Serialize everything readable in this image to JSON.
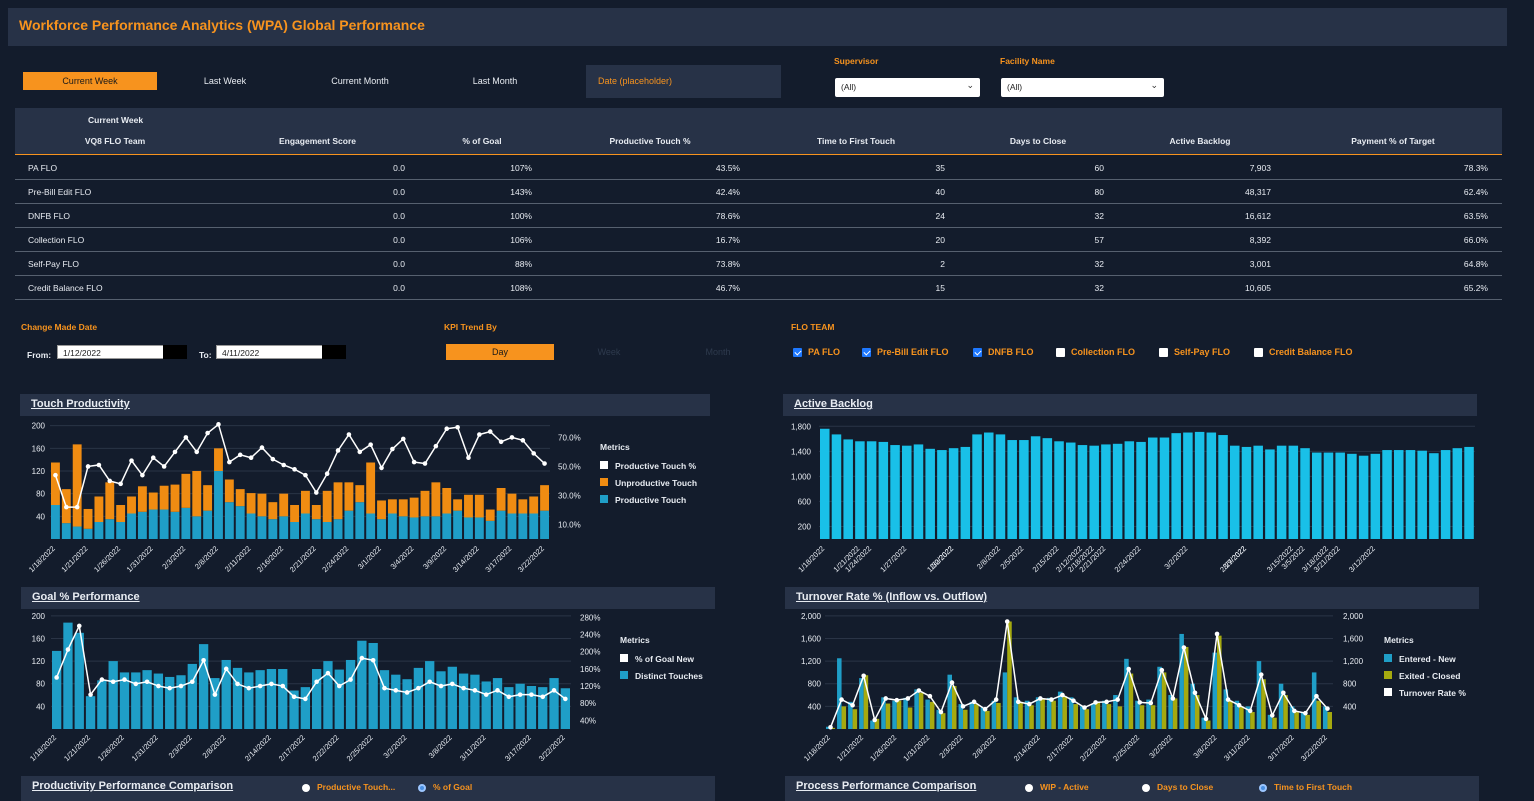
{
  "title": "Workforce Performance Analytics (WPA) Global Performance",
  "date_tabs": [
    "Current Week",
    "Last Week",
    "Current Month",
    "Last Month"
  ],
  "date_placeholder": "Date (placeholder)",
  "filters": {
    "supervisor_label": "Supervisor",
    "supervisor_value": "(All)",
    "facility_label": "Facility Name",
    "facility_value": "(All)"
  },
  "table": {
    "caption": "Current Week",
    "columns": [
      "VQ8 FLO Team",
      "Engagement Score",
      "% of Goal",
      "Productive Touch %",
      "Time to First Touch",
      "Days to Close",
      "Active Backlog",
      "Payment % of Target"
    ],
    "rows": [
      [
        "PA FLO",
        "0.0",
        "107%",
        "43.5%",
        "35",
        "60",
        "7,903",
        "78.3%"
      ],
      [
        "Pre-Bill Edit FLO",
        "0.0",
        "143%",
        "42.4%",
        "40",
        "80",
        "48,317",
        "62.4%"
      ],
      [
        "DNFB FLO",
        "0.0",
        "100%",
        "78.6%",
        "24",
        "32",
        "16,612",
        "63.5%"
      ],
      [
        "Collection FLO",
        "0.0",
        "106%",
        "16.7%",
        "20",
        "57",
        "8,392",
        "66.0%"
      ],
      [
        "Self-Pay FLO",
        "0.0",
        "88%",
        "73.8%",
        "2",
        "32",
        "3,001",
        "64.8%"
      ],
      [
        "Credit Balance FLO",
        "0.0",
        "108%",
        "46.7%",
        "15",
        "32",
        "10,605",
        "65.2%"
      ]
    ]
  },
  "change_date": {
    "label": "Change Made Date",
    "from_label": "From:",
    "from_value": "1/12/2022",
    "to_label": "To:",
    "to_value": "4/11/2022"
  },
  "kpi_trend": {
    "label": "KPI Trend By",
    "options": [
      "Day",
      "Week",
      "Month"
    ],
    "selected": "Day"
  },
  "flo_team": {
    "label": "FLO TEAM",
    "items": [
      {
        "label": "PA FLO",
        "checked": true
      },
      {
        "label": "Pre-Bill Edit FLO",
        "checked": true
      },
      {
        "label": "DNFB FLO",
        "checked": true
      },
      {
        "label": "Collection FLO",
        "checked": false
      },
      {
        "label": "Self-Pay FLO",
        "checked": false
      },
      {
        "label": "Credit Balance FLO",
        "checked": false
      }
    ]
  },
  "panels": {
    "touch": "Touch Productivity",
    "backlog": "Active Backlog",
    "goal": "Goal % Performance",
    "turnover": "Turnover Rate % (Inflow vs. Outflow)",
    "productivity_comparison": "Productivity Performance Comparison",
    "process_comparison": "Process Performance Comparison"
  },
  "productivity_radios": [
    {
      "label": "Productive Touch...",
      "selected": false
    },
    {
      "label": "% of Goal",
      "selected": true
    }
  ],
  "process_radios": [
    {
      "label": "WIP - Active",
      "selected": false
    },
    {
      "label": "Days to Close",
      "selected": false
    },
    {
      "label": "Time to First Touch",
      "selected": true
    }
  ],
  "colors": {
    "accent": "#f7931e",
    "bar_blue": "#1f9ec7",
    "backlog_blue": "#19c0e8",
    "olive": "#a5a90f",
    "panel": "#273247",
    "background": "#131c2c"
  },
  "chart_data": [
    {
      "type": "bar",
      "name": "touch",
      "stacked": true,
      "categories": [
        "1/18/2022",
        "1/19/2022",
        "1/20/2022",
        "1/21/2022",
        "1/24/2022",
        "1/25/2022",
        "1/26/2022",
        "1/27/2022",
        "1/28/2022",
        "1/31/2022",
        "2/1/2022",
        "2/2/2022",
        "2/3/2022",
        "2/4/2022",
        "2/7/2022",
        "2/8/2022",
        "2/9/2022",
        "2/10/2022",
        "2/11/2022",
        "2/14/2022",
        "2/15/2022",
        "2/16/2022",
        "2/17/2022",
        "2/18/2022",
        "2/21/2022",
        "2/22/2022",
        "2/23/2022",
        "2/24/2022",
        "2/25/2022",
        "2/28/2022",
        "3/1/2022",
        "3/2/2022",
        "3/3/2022",
        "3/4/2022",
        "3/7/2022",
        "3/8/2022",
        "3/9/2022",
        "3/10/2022",
        "3/11/2022",
        "3/14/2022",
        "3/15/2022",
        "3/16/2022",
        "3/17/2022",
        "3/18/2022",
        "3/21/2022",
        "3/22/2022"
      ],
      "tick_labels": [
        "1/18/2022",
        "1/21/2022",
        "1/26/2022",
        "1/31/2022",
        "2/3/2022",
        "2/8/2022",
        "2/11/2022",
        "2/16/2022",
        "2/21/2022",
        "2/24/2022",
        "3/1/2022",
        "3/4/2022",
        "3/9/2022",
        "3/14/2022",
        "3/17/2022",
        "3/22/2022"
      ],
      "series": [
        {
          "name": "Productive Touch",
          "values": [
            60,
            28,
            22,
            18,
            30,
            35,
            30,
            45,
            48,
            52,
            52,
            48,
            55,
            40,
            50,
            120,
            65,
            58,
            45,
            40,
            35,
            40,
            30,
            45,
            35,
            30,
            35,
            50,
            65,
            45,
            35,
            45,
            40,
            38,
            40,
            40,
            45,
            50,
            38,
            38,
            32,
            50,
            45,
            45,
            45,
            50
          ]
        },
        {
          "name": "Unproductive Touch",
          "values": [
            75,
            60,
            145,
            35,
            45,
            65,
            30,
            30,
            45,
            30,
            42,
            48,
            60,
            80,
            45,
            40,
            40,
            30,
            36,
            40,
            30,
            40,
            30,
            40,
            25,
            55,
            65,
            50,
            30,
            90,
            33,
            25,
            30,
            35,
            45,
            60,
            45,
            20,
            40,
            40,
            20,
            40,
            35,
            25,
            30,
            45
          ]
        },
        {
          "name": "Productive Touch %",
          "values": [
            44,
            22,
            22,
            50,
            51,
            40,
            38,
            54,
            44,
            56,
            50,
            60,
            70,
            60,
            73,
            79,
            53,
            58,
            56,
            63,
            55,
            51,
            48,
            44,
            32,
            45,
            61,
            72,
            60,
            65,
            49,
            62,
            69,
            53,
            52,
            64,
            76,
            77,
            56,
            72,
            74,
            67,
            70,
            68,
            59,
            52
          ]
        }
      ],
      "y_left_ticks": [
        40,
        80,
        120,
        160,
        200
      ],
      "y_right_ticks": [
        "10.0%",
        "30.0%",
        "50.0%",
        "70.0%"
      ],
      "legend_title": "Metrics"
    },
    {
      "type": "bar",
      "name": "backlog",
      "categories": [
        "1/18/2022",
        "1/19/2022",
        "1/20/2022",
        "1/21/2022",
        "1/24/2022",
        "1/25/2022",
        "1/26/2022",
        "1/27/2022",
        "1/28/2022",
        "1/31/2022",
        "2/1/2022",
        "2/2/2022",
        "2/3/2022",
        "2/4/2022",
        "2/7/2022",
        "2/8/2022",
        "2/9/2022",
        "2/10/2022",
        "2/11/2022",
        "2/14/2022",
        "2/15/2022",
        "2/16/2022",
        "2/17/2022",
        "2/18/2022",
        "2/21/2022",
        "2/22/2022",
        "2/23/2022",
        "2/24/2022",
        "2/25/2022",
        "2/28/2022",
        "3/1/2022",
        "3/2/2022",
        "3/3/2022",
        "3/4/2022",
        "3/7/2022",
        "3/8/2022",
        "3/9/2022",
        "3/10/2022",
        "3/11/2022",
        "3/14/2022",
        "3/15/2022",
        "3/16/2022",
        "3/17/2022",
        "3/18/2022",
        "3/21/2022",
        "3/22/2022",
        "3/23/2022",
        "3/24/2022",
        "3/25/2022",
        "3/28/2022",
        "3/29/2022",
        "3/30/2022",
        "3/31/2022",
        "4/1/2022",
        "4/4/2022",
        "4/5/2022"
      ],
      "tick_labels": [
        "1/18/2022",
        "1/21/2022",
        "1/24/2022",
        "1/27/2022",
        "1/30/2022",
        "2/2/2022",
        "2/5/2022",
        "2/8/2022",
        "2/12/2022",
        "2/15/2022",
        "2/18/2022",
        "2/21/2022",
        "2/24/2022",
        "2/27/2022",
        "3/2/2022",
        "3/5/2022",
        "3/9/2022",
        "3/12/2022",
        "3/15/2022",
        "3/18/2022",
        "3/21/2022"
      ],
      "values": [
        1760,
        1670,
        1590,
        1560,
        1560,
        1550,
        1500,
        1490,
        1510,
        1440,
        1420,
        1450,
        1470,
        1670,
        1700,
        1670,
        1580,
        1580,
        1640,
        1610,
        1560,
        1540,
        1500,
        1490,
        1510,
        1520,
        1560,
        1550,
        1620,
        1620,
        1690,
        1700,
        1710,
        1700,
        1660,
        1490,
        1470,
        1490,
        1430,
        1490,
        1490,
        1450,
        1380,
        1380,
        1380,
        1360,
        1330,
        1360,
        1420,
        1420,
        1420,
        1410,
        1370,
        1420,
        1450,
        1470
      ],
      "y_ticks": [
        "200",
        "600",
        "1,000",
        "1,400",
        "1,800"
      ]
    },
    {
      "type": "bar",
      "name": "goal",
      "categories": [
        "1/18/2022",
        "1/19/2022",
        "1/20/2022",
        "1/21/2022",
        "1/24/2022",
        "1/25/2022",
        "1/26/2022",
        "1/27/2022",
        "1/28/2022",
        "1/31/2022",
        "2/1/2022",
        "2/2/2022",
        "2/3/2022",
        "2/4/2022",
        "2/7/2022",
        "2/8/2022",
        "2/9/2022",
        "2/10/2022",
        "2/11/2022",
        "2/14/2022",
        "2/15/2022",
        "2/16/2022",
        "2/17/2022",
        "2/18/2022",
        "2/21/2022",
        "2/22/2022",
        "2/23/2022",
        "2/24/2022",
        "2/25/2022",
        "2/28/2022",
        "3/1/2022",
        "3/2/2022",
        "3/3/2022",
        "3/4/2022",
        "3/7/2022",
        "3/8/2022",
        "3/9/2022",
        "3/10/2022",
        "3/11/2022",
        "3/14/2022",
        "3/15/2022",
        "3/16/2022",
        "3/17/2022",
        "3/18/2022",
        "3/21/2022",
        "3/22/2022"
      ],
      "tick_labels": [
        "1/18/2022",
        "1/21/2022",
        "1/26/2022",
        "1/31/2022",
        "2/3/2022",
        "2/8/2022",
        "2/14/2022",
        "2/17/2022",
        "2/22/2022",
        "2/25/2022",
        "3/2/2022",
        "3/8/2022",
        "3/11/2022",
        "3/17/2022",
        "3/22/2022"
      ],
      "series": [
        {
          "name": "Distinct Touches",
          "values": [
            138,
            188,
            170,
            58,
            86,
            120,
            100,
            100,
            104,
            98,
            92,
            95,
            115,
            150,
            90,
            122,
            108,
            100,
            104,
            106,
            106,
            68,
            74,
            106,
            120,
            105,
            122,
            156,
            152,
            104,
            96,
            88,
            108,
            120,
            102,
            110,
            98,
            96,
            84,
            90,
            74,
            80,
            76,
            74,
            90,
            72
          ]
        },
        {
          "name": "% of Goal New",
          "values": [
            140,
            205,
            260,
            100,
            135,
            130,
            135,
            125,
            130,
            120,
            115,
            120,
            130,
            180,
            100,
            160,
            125,
            115,
            120,
            125,
            120,
            95,
            90,
            130,
            150,
            120,
            135,
            185,
            180,
            115,
            110,
            105,
            115,
            130,
            120,
            125,
            115,
            110,
            100,
            110,
            95,
            100,
            100,
            95,
            110,
            90
          ]
        }
      ],
      "y_left_ticks": [
        40,
        80,
        120,
        160,
        200
      ],
      "y_right_ticks": [
        "40%",
        "80%",
        "120%",
        "160%",
        "200%",
        "240%",
        "280%"
      ],
      "legend_title": "Metrics"
    },
    {
      "type": "bar",
      "name": "turnover",
      "categories": [
        "1/18/2022",
        "1/19/2022",
        "1/20/2022",
        "1/21/2022",
        "1/24/2022",
        "1/25/2022",
        "1/26/2022",
        "1/27/2022",
        "1/28/2022",
        "1/31/2022",
        "2/1/2022",
        "2/2/2022",
        "2/3/2022",
        "2/4/2022",
        "2/7/2022",
        "2/8/2022",
        "2/9/2022",
        "2/10/2022",
        "2/11/2022",
        "2/14/2022",
        "2/15/2022",
        "2/16/2022",
        "2/17/2022",
        "2/18/2022",
        "2/21/2022",
        "2/22/2022",
        "2/23/2022",
        "2/24/2022",
        "2/25/2022",
        "2/28/2022",
        "3/1/2022",
        "3/2/2022",
        "3/3/2022",
        "3/4/2022",
        "3/7/2022",
        "3/8/2022",
        "3/9/2022",
        "3/10/2022",
        "3/11/2022",
        "3/14/2022",
        "3/15/2022",
        "3/16/2022",
        "3/17/2022",
        "3/18/2022",
        "3/21/2022",
        "3/22/2022"
      ],
      "tick_labels": [
        "1/18/2022",
        "1/21/2022",
        "1/26/2022",
        "1/31/2022",
        "2/3/2022",
        "2/8/2022",
        "2/14/2022",
        "2/17/2022",
        "2/22/2022",
        "2/25/2022",
        "3/2/2022",
        "3/8/2022",
        "3/11/2022",
        "3/17/2022",
        "3/22/2022"
      ],
      "series": [
        {
          "name": "Entered - New",
          "values": [
            40,
            1250,
            480,
            900,
            150,
            560,
            500,
            550,
            700,
            520,
            340,
            960,
            440,
            480,
            380,
            500,
            1000,
            560,
            500,
            560,
            550,
            660,
            560,
            400,
            450,
            500,
            600,
            1240,
            500,
            520,
            1100,
            600,
            1680,
            800,
            200,
            1350,
            700,
            500,
            400,
            1200,
            250,
            800,
            400,
            300,
            1000,
            400
          ]
        },
        {
          "name": "Exited - Closed",
          "values": [
            20,
            400,
            350,
            950,
            180,
            450,
            500,
            380,
            640,
            480,
            280,
            760,
            340,
            440,
            320,
            460,
            1900,
            480,
            420,
            540,
            500,
            580,
            440,
            350,
            480,
            440,
            400,
            980,
            420,
            420,
            1000,
            540,
            1450,
            600,
            150,
            1650,
            500,
            400,
            300,
            880,
            200,
            600,
            300,
            250,
            500,
            300
          ]
        },
        {
          "name": "Turnover Rate %",
          "values": [
            30,
            520,
            420,
            940,
            160,
            540,
            510,
            540,
            680,
            580,
            300,
            820,
            400,
            480,
            350,
            520,
            1900,
            480,
            440,
            540,
            520,
            600,
            500,
            380,
            470,
            480,
            520,
            1060,
            470,
            460,
            1040,
            540,
            1440,
            640,
            180,
            1680,
            520,
            420,
            320,
            960,
            240,
            640,
            320,
            280,
            580,
            360
          ]
        }
      ],
      "y_left_ticks": [
        "400",
        "800",
        "1,200",
        "1,600",
        "2,000"
      ],
      "y_right_ticks": [
        "400",
        "800",
        "1,200",
        "1,600",
        "2,000"
      ],
      "legend_title": "Metrics"
    }
  ]
}
